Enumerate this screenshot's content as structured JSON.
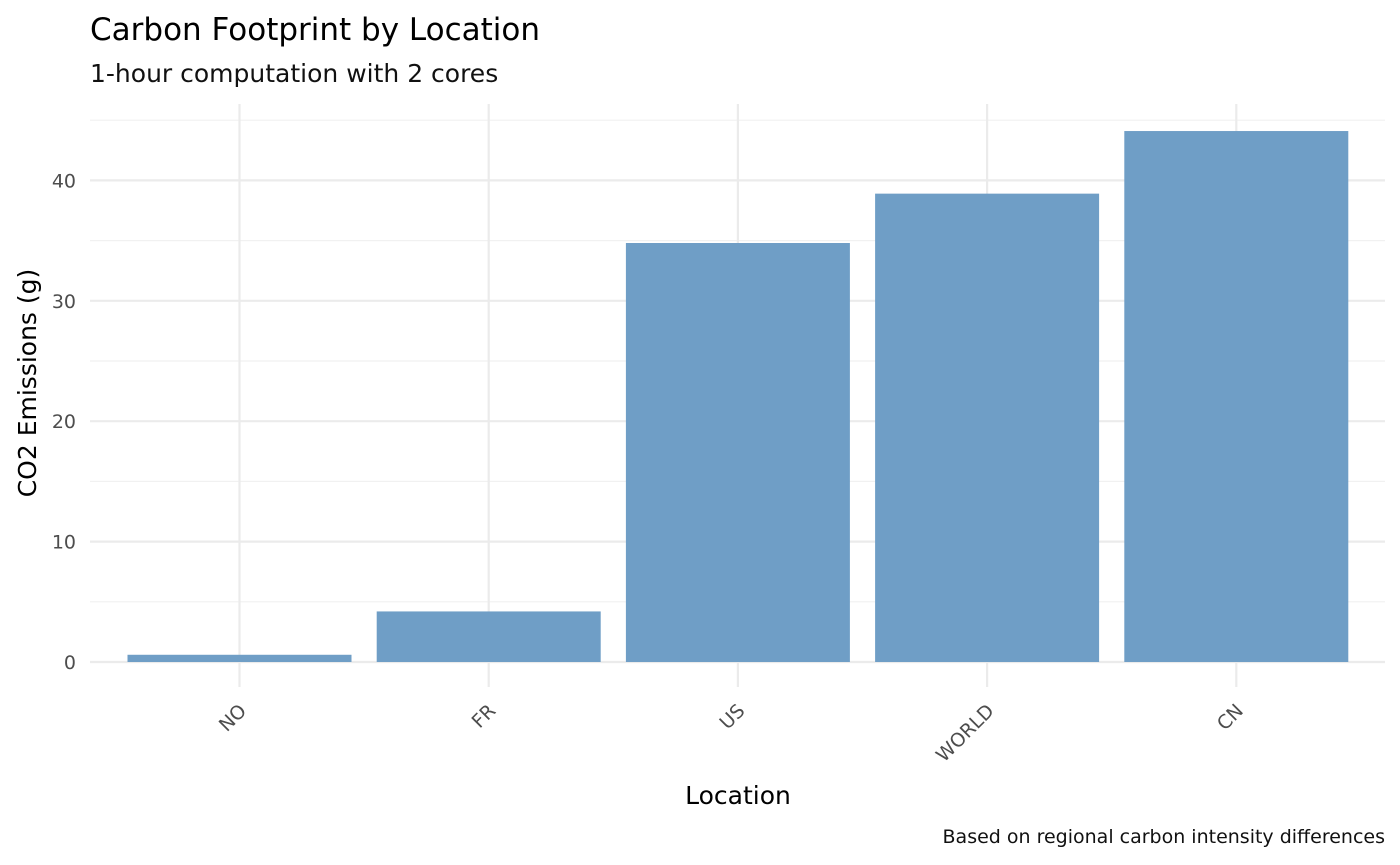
{
  "chart_data": {
    "type": "bar",
    "title": "Carbon Footprint by Location",
    "subtitle": "1-hour computation with 2 cores",
    "xlabel": "Location",
    "ylabel": "CO2 Emissions (g)",
    "caption": "Based on regional carbon intensity differences",
    "categories": [
      "NO",
      "FR",
      "US",
      "WORLD",
      "CN"
    ],
    "values": [
      0.6,
      4.2,
      34.8,
      38.9,
      44.1
    ],
    "ylim": [
      0,
      45.5
    ],
    "yticks": [
      0,
      10,
      20,
      30,
      40
    ],
    "bar_color": "#6f9ec6",
    "grid": true,
    "legend": "none"
  }
}
